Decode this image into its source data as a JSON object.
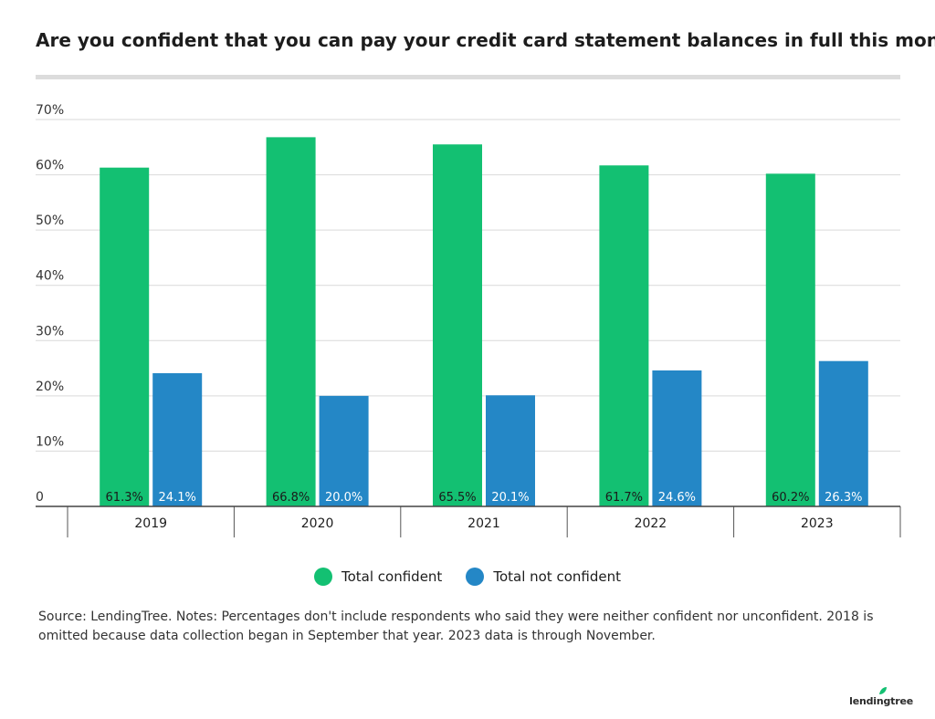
{
  "chart_data": {
    "type": "bar",
    "title": "Are you confident that you can pay your credit card statement balances in full this month?",
    "categories": [
      "2019",
      "2020",
      "2021",
      "2022",
      "2023"
    ],
    "series": [
      {
        "name": "Total confident",
        "values": [
          61.3,
          66.8,
          65.5,
          61.7,
          60.2
        ],
        "labels": [
          "61.3%",
          "66.8%",
          "65.5%",
          "61.7%",
          "60.2%"
        ],
        "color": "#13c072"
      },
      {
        "name": "Total not confident",
        "values": [
          24.1,
          20.0,
          20.1,
          24.6,
          26.3
        ],
        "labels": [
          "24.1%",
          "20.0%",
          "20.1%",
          "24.6%",
          "26.3%"
        ],
        "color": "#2487c6"
      }
    ],
    "ylim": [
      0,
      70
    ],
    "yticks": [
      0,
      10,
      20,
      30,
      40,
      50,
      60,
      70
    ],
    "ytick_labels": [
      "0",
      "10%",
      "20%",
      "30%",
      "40%",
      "50%",
      "60%",
      "70%"
    ],
    "xlabel": "",
    "ylabel": "",
    "grid": true,
    "legend_position": "bottom-center"
  },
  "footnote": "Source: LendingTree. Notes: Percentages don't include respondents who said they were neither confident nor unconfident. 2018 is omitted because data collection began in September that year. 2023 data is through November.",
  "brand": "lendingtree"
}
